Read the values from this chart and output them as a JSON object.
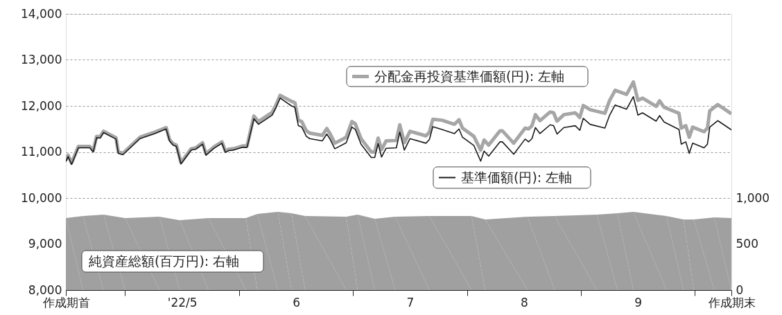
{
  "chart_data": {
    "type": "line",
    "grid": "y",
    "legend": "top right",
    "xlim": [
      3.98,
      9.82
    ],
    "xticks": [
      {
        "value": 3.98,
        "label": "作成期首"
      },
      {
        "value": 4.5,
        "label": null
      },
      {
        "value": 5,
        "label": "'22/5"
      },
      {
        "value": 5.5,
        "label": null
      },
      6,
      {
        "value": 6.5,
        "label": null
      },
      7,
      {
        "value": 7.5,
        "label": null
      },
      8,
      {
        "value": 8.5,
        "label": null
      },
      9,
      {
        "value": 9.5,
        "label": null
      },
      {
        "value": 9.82,
        "label": "作成期末"
      }
    ],
    "ylim": [
      8000,
      14000
    ],
    "yticks": [
      {
        "value": 8000,
        "label": "8,000"
      },
      {
        "value": 9000,
        "label": "9,000"
      },
      {
        "value": 10000,
        "label": "10,000"
      },
      {
        "value": 11000,
        "label": "11,000"
      },
      {
        "value": 12000,
        "label": "12,000"
      },
      {
        "value": 13000,
        "label": "13,000"
      },
      {
        "value": 14000,
        "label": "14,000"
      }
    ],
    "y2lim": [
      0,
      3000
    ],
    "y2ticks": [
      0,
      500,
      {
        "value": 1000,
        "label": "1,000"
      }
    ],
    "series": [
      {
        "name": "分配金再投資基準価額(円): 左軸",
        "color": "#a6a6a6",
        "x": [
          3.98,
          4.0,
          4.03,
          4.09,
          4.19,
          4.22,
          4.25,
          4.28,
          4.31,
          4.42,
          4.44,
          4.48,
          4.63,
          4.76,
          4.86,
          4.89,
          4.92,
          4.95,
          4.99,
          5.08,
          5.12,
          5.18,
          5.21,
          5.28,
          5.35,
          5.38,
          5.41,
          5.45,
          5.53,
          5.57,
          5.63,
          5.67,
          5.79,
          5.82,
          5.86,
          5.96,
          5.99,
          6.02,
          6.05,
          6.09,
          6.12,
          6.23,
          6.27,
          6.3,
          6.34,
          6.44,
          6.49,
          6.52,
          6.57,
          6.66,
          6.69,
          6.72,
          6.75,
          6.79,
          6.88,
          6.91,
          6.95,
          7.0,
          7.14,
          7.17,
          7.2,
          7.28,
          7.39,
          7.43,
          7.46,
          7.56,
          7.62,
          7.65,
          7.69,
          7.79,
          7.81,
          7.91,
          8.01,
          8.04,
          8.07,
          8.1,
          8.14,
          8.23,
          8.26,
          8.29,
          8.35,
          8.45,
          8.49,
          8.52,
          8.58,
          8.71,
          8.75,
          8.8,
          8.9,
          8.96,
          9.0,
          9.04,
          9.16,
          9.19,
          9.23,
          9.36,
          9.38,
          9.42,
          9.45,
          9.48,
          9.58,
          9.61,
          9.63,
          9.7,
          9.82
        ],
        "values": [
          10820,
          10930,
          10760,
          11120,
          11120,
          11030,
          11340,
          11330,
          11450,
          11310,
          11000,
          10970,
          11320,
          11430,
          11530,
          11270,
          11180,
          11150,
          10770,
          11070,
          11090,
          11200,
          10960,
          11110,
          11220,
          11020,
          11060,
          11070,
          11130,
          11130,
          11780,
          11660,
          11860,
          12000,
          12230,
          12100,
          12070,
          11690,
          11660,
          11460,
          11410,
          11360,
          11510,
          11390,
          11190,
          11320,
          11660,
          11610,
          11290,
          11000,
          11000,
          11300,
          11050,
          11240,
          11250,
          11590,
          11200,
          11450,
          11350,
          11430,
          11710,
          11690,
          11600,
          11700,
          11520,
          11340,
          11040,
          11260,
          11150,
          11460,
          11460,
          11190,
          11520,
          11500,
          11570,
          11810,
          11680,
          11870,
          11850,
          11670,
          11810,
          11850,
          11750,
          12010,
          11920,
          11840,
          12110,
          12340,
          12250,
          12520,
          12120,
          12170,
          11990,
          12110,
          11970,
          11840,
          11520,
          11570,
          11320,
          11540,
          11440,
          11520,
          11890,
          12030,
          11830
        ]
      },
      {
        "name": "基準価額(円): 左軸",
        "color": "#1a1a1a",
        "x": [
          3.98,
          4.0,
          4.03,
          4.09,
          4.19,
          4.22,
          4.25,
          4.28,
          4.31,
          4.42,
          4.44,
          4.48,
          4.63,
          4.76,
          4.86,
          4.89,
          4.92,
          4.95,
          4.99,
          5.08,
          5.12,
          5.18,
          5.21,
          5.28,
          5.35,
          5.38,
          5.41,
          5.45,
          5.53,
          5.57,
          5.63,
          5.67,
          5.79,
          5.82,
          5.86,
          5.96,
          5.99,
          6.02,
          6.05,
          6.09,
          6.12,
          6.23,
          6.27,
          6.3,
          6.34,
          6.44,
          6.49,
          6.52,
          6.57,
          6.66,
          6.69,
          6.72,
          6.75,
          6.79,
          6.88,
          6.91,
          6.95,
          7.0,
          7.14,
          7.17,
          7.2,
          7.28,
          7.39,
          7.43,
          7.46,
          7.56,
          7.62,
          7.65,
          7.69,
          7.79,
          7.81,
          7.91,
          8.01,
          8.04,
          8.07,
          8.1,
          8.14,
          8.23,
          8.26,
          8.29,
          8.35,
          8.45,
          8.49,
          8.52,
          8.58,
          8.71,
          8.75,
          8.8,
          8.9,
          8.96,
          9.0,
          9.04,
          9.16,
          9.19,
          9.23,
          9.36,
          9.38,
          9.42,
          9.45,
          9.48,
          9.58,
          9.61,
          9.63,
          9.7,
          9.82
        ],
        "values": [
          10790,
          10900,
          10730,
          11090,
          11090,
          11000,
          11310,
          11300,
          11420,
          11280,
          10970,
          10940,
          11290,
          11400,
          11500,
          11240,
          11150,
          11120,
          10740,
          11040,
          11060,
          11170,
          10930,
          11080,
          11190,
          10990,
          11030,
          11040,
          11100,
          11100,
          11720,
          11600,
          11800,
          11940,
          12170,
          12000,
          11970,
          11570,
          11540,
          11340,
          11290,
          11240,
          11390,
          11270,
          11070,
          11200,
          11540,
          11490,
          11170,
          10880,
          10880,
          11180,
          10890,
          11080,
          11090,
          11430,
          11040,
          11290,
          11190,
          11270,
          11550,
          11490,
          11400,
          11500,
          11320,
          11140,
          10800,
          11020,
          10910,
          11220,
          11220,
          10950,
          11280,
          11220,
          11290,
          11530,
          11400,
          11590,
          11570,
          11390,
          11530,
          11570,
          11470,
          11730,
          11600,
          11520,
          11790,
          12020,
          11930,
          12200,
          11800,
          11850,
          11670,
          11790,
          11650,
          11490,
          11170,
          11220,
          10970,
          11190,
          11090,
          11170,
          11540,
          11680,
          11480
        ]
      },
      {
        "name": "純資産総額(百万円): 右軸",
        "color": "#a0a0a0",
        "type": "area",
        "axis": "y2",
        "x": [
          3.98,
          4.13,
          4.31,
          4.5,
          4.8,
          4.98,
          5.23,
          5.56,
          5.66,
          5.84,
          5.96,
          6.08,
          6.44,
          6.54,
          6.69,
          6.87,
          7.17,
          7.54,
          7.66,
          8.03,
          8.27,
          8.64,
          8.82,
          8.96,
          9.25,
          9.4,
          9.49,
          9.67,
          9.82
        ],
        "values": [
          782,
          805,
          820,
          782,
          797,
          759,
          782,
          782,
          827,
          850,
          835,
          805,
          797,
          820,
          775,
          797,
          805,
          805,
          767,
          797,
          805,
          820,
          835,
          850,
          805,
          767,
          767,
          790,
          782
        ]
      }
    ]
  }
}
